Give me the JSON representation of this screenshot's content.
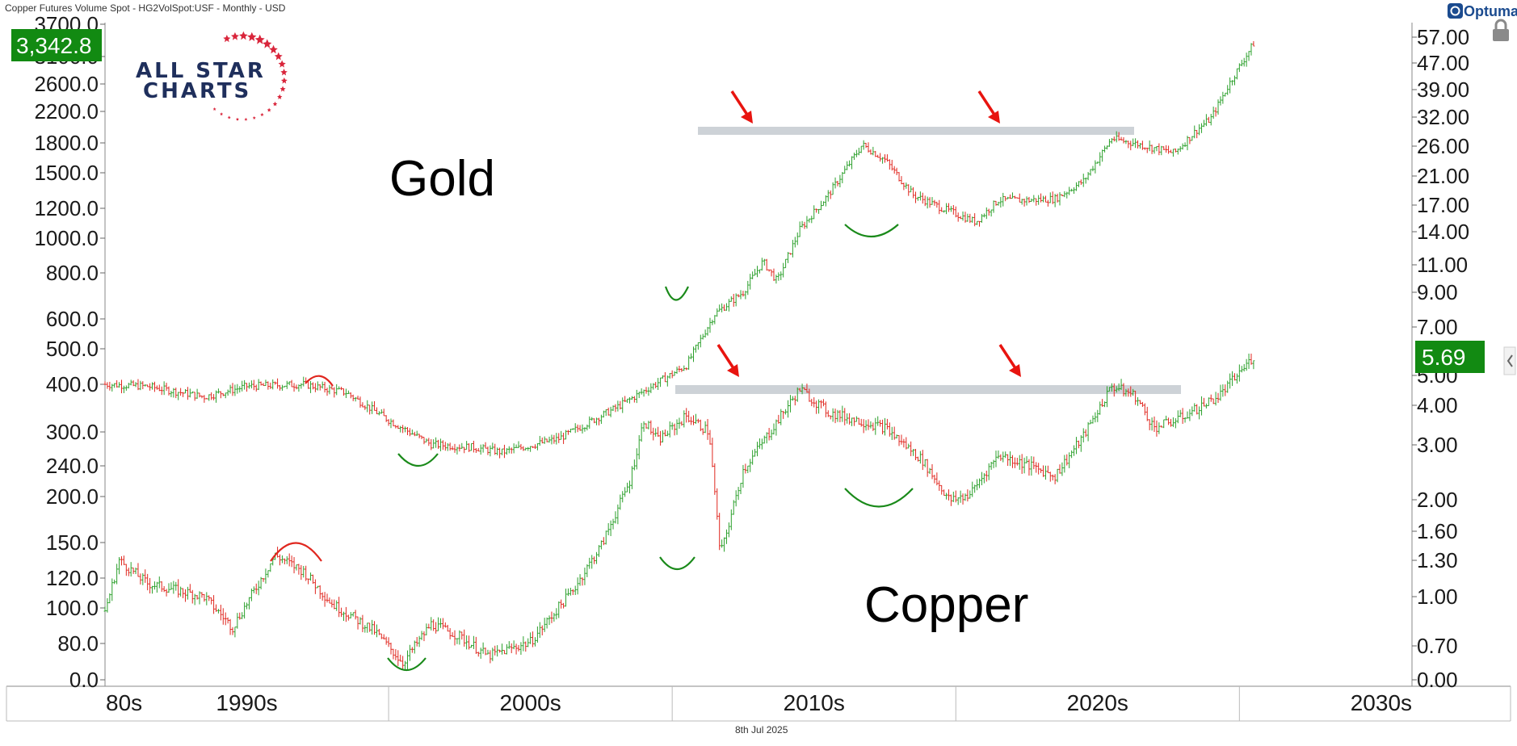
{
  "header": {
    "title": "Copper Futures Volume Spot - HG2VolSpot:USF - Monthly - USD",
    "brand": "Optuma",
    "date": "8th Jul 2025"
  },
  "logo": {
    "line1": "ALL STAR",
    "line2": "CHARTS"
  },
  "colors": {
    "up": "#2ca02c",
    "down": "#e0271f",
    "badge": "#128a12",
    "band": "#c8cdd3",
    "arc": "#1a8a1a",
    "arrow": "#e8140f"
  },
  "chart_data": {
    "type": "candlestick",
    "scale": "log",
    "x_tick_labels": [
      "80s",
      "1990s",
      "2000s",
      "2010s",
      "2020s",
      "2030s"
    ],
    "x_range": [
      1985,
      2031
    ],
    "left_axis": {
      "ticks": [
        "3700.0",
        "3100.0",
        "2600.0",
        "2200.0",
        "1800.0",
        "1500.0",
        "1200.0",
        "1000.0",
        "800.0",
        "600.0",
        "500.0",
        "400.0",
        "300.0",
        "240.0",
        "200.0",
        "150.0",
        "120.0",
        "100.0",
        "80.0",
        "0.0"
      ],
      "last_value": "3,342.8"
    },
    "right_axis": {
      "ticks": [
        "57.00",
        "47.00",
        "39.00",
        "32.00",
        "26.00",
        "21.00",
        "17.00",
        "14.00",
        "11.00",
        "9.00",
        "7.00",
        "5.00",
        "4.00",
        "3.00",
        "2.00",
        "1.60",
        "1.30",
        "1.00",
        "0.70",
        "0.00"
      ],
      "last_value": "5.69"
    },
    "annotations": [
      "Gold",
      "Copper"
    ],
    "series": [
      {
        "name": "Gold",
        "anchors": [
          [
            1985.0,
            400
          ],
          [
            1986.5,
            395
          ],
          [
            1988.5,
            370
          ],
          [
            1990.0,
            395
          ],
          [
            1992.0,
            400
          ],
          [
            1993.5,
            380
          ],
          [
            1995.0,
            320
          ],
          [
            1996.5,
            275
          ],
          [
            1998.0,
            270
          ],
          [
            1999.0,
            262
          ],
          [
            2001.0,
            285
          ],
          [
            2003.0,
            345
          ],
          [
            2005.5,
            450
          ],
          [
            2006.5,
            620
          ],
          [
            2007.5,
            710
          ],
          [
            2008.2,
            860
          ],
          [
            2008.7,
            760
          ],
          [
            2009.5,
            1050
          ],
          [
            2010.5,
            1300
          ],
          [
            2011.7,
            1780
          ],
          [
            2012.5,
            1620
          ],
          [
            2013.5,
            1300
          ],
          [
            2014.5,
            1200
          ],
          [
            2015.7,
            1100
          ],
          [
            2016.5,
            1260
          ],
          [
            2017.5,
            1260
          ],
          [
            2018.5,
            1270
          ],
          [
            2019.5,
            1420
          ],
          [
            2020.5,
            1850
          ],
          [
            2021.5,
            1780
          ],
          [
            2022.7,
            1690
          ],
          [
            2023.5,
            1950
          ],
          [
            2024.0,
            2100
          ],
          [
            2024.7,
            2650
          ],
          [
            2025.5,
            3342.8
          ]
        ]
      },
      {
        "name": "Copper",
        "anchors": [
          [
            1985.0,
            0.9
          ],
          [
            1985.5,
            1.3
          ],
          [
            1986.5,
            1.1
          ],
          [
            1988.5,
            1.0
          ],
          [
            1989.5,
            0.8
          ],
          [
            1991.0,
            1.35
          ],
          [
            1992.0,
            1.2
          ],
          [
            1993.0,
            0.95
          ],
          [
            1994.5,
            0.78
          ],
          [
            1995.5,
            0.62
          ],
          [
            1996.5,
            0.82
          ],
          [
            1997.5,
            0.75
          ],
          [
            1998.5,
            0.65
          ],
          [
            2000.0,
            0.72
          ],
          [
            2001.5,
            1.05
          ],
          [
            2002.5,
            1.45
          ],
          [
            2003.5,
            2.3
          ],
          [
            2004.0,
            3.6
          ],
          [
            2004.5,
            3.1
          ],
          [
            2005.5,
            3.7
          ],
          [
            2006.3,
            3.3
          ],
          [
            2006.7,
            1.35
          ],
          [
            2007.5,
            2.5
          ],
          [
            2009.5,
            4.5
          ],
          [
            2010.5,
            3.8
          ],
          [
            2012.5,
            3.4
          ],
          [
            2013.8,
            2.7
          ],
          [
            2014.8,
            2.0
          ],
          [
            2015.5,
            2.1
          ],
          [
            2016.5,
            2.8
          ],
          [
            2017.5,
            2.6
          ],
          [
            2018.5,
            2.4
          ],
          [
            2019.5,
            3.2
          ],
          [
            2020.5,
            4.6
          ],
          [
            2021.3,
            4.3
          ],
          [
            2022.0,
            3.4
          ],
          [
            2022.8,
            3.6
          ],
          [
            2023.5,
            3.9
          ],
          [
            2024.3,
            4.3
          ],
          [
            2025.5,
            5.69
          ]
        ]
      }
    ]
  }
}
